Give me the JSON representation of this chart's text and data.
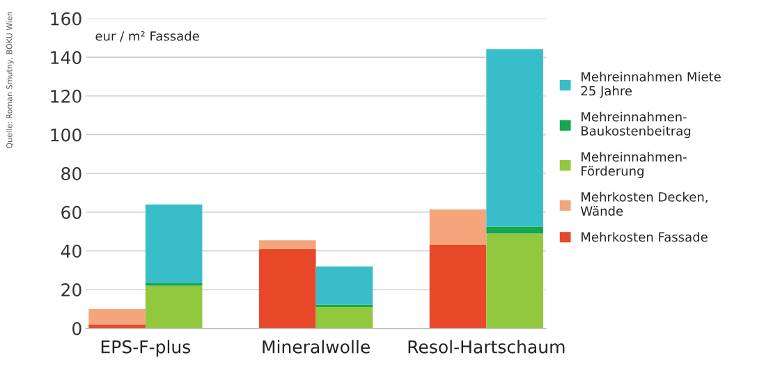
{
  "chart_data": {
    "type": "bar",
    "stacked": true,
    "categories": [
      "EPS-F-plus",
      null,
      null,
      "Mineralwolle",
      null,
      null,
      "Resol-Hartschaum",
      null
    ],
    "series": [
      {
        "name": "Mehrkosten Fassade",
        "color": "#e8482a",
        "values": [
          2,
          null,
          null,
          41,
          null,
          null,
          43,
          null
        ]
      },
      {
        "name": "Mehrkosten Decken,\nWände",
        "color": "#f4a57c",
        "values": [
          8,
          null,
          null,
          4.5,
          null,
          null,
          18.5,
          null
        ]
      },
      {
        "name": "Mehreinnahmen-\nFörderung",
        "color": "#92c83e",
        "values": [
          null,
          22,
          null,
          null,
          11,
          null,
          null,
          49
        ]
      },
      {
        "name": "Mehreinnahmen-\nBaukostenbeitrag",
        "color": "#14a651",
        "values": [
          null,
          1.5,
          null,
          null,
          1.3,
          null,
          null,
          3.6
        ]
      },
      {
        "name": "Mehreinnahmen Miete\n25 Jahre",
        "color": "#37bec8",
        "values": [
          null,
          40.5,
          null,
          null,
          19.7,
          null,
          null,
          91.6
        ]
      }
    ],
    "ylabel": "eur / m² Fassade",
    "ylim": [
      0,
      160
    ],
    "yticks": [
      0,
      20,
      40,
      60,
      80,
      100,
      120,
      140,
      160
    ],
    "grid": "y",
    "legend": "right",
    "annotations": [
      "Quelle: Roman Smutny, BOKU Wien"
    ]
  }
}
